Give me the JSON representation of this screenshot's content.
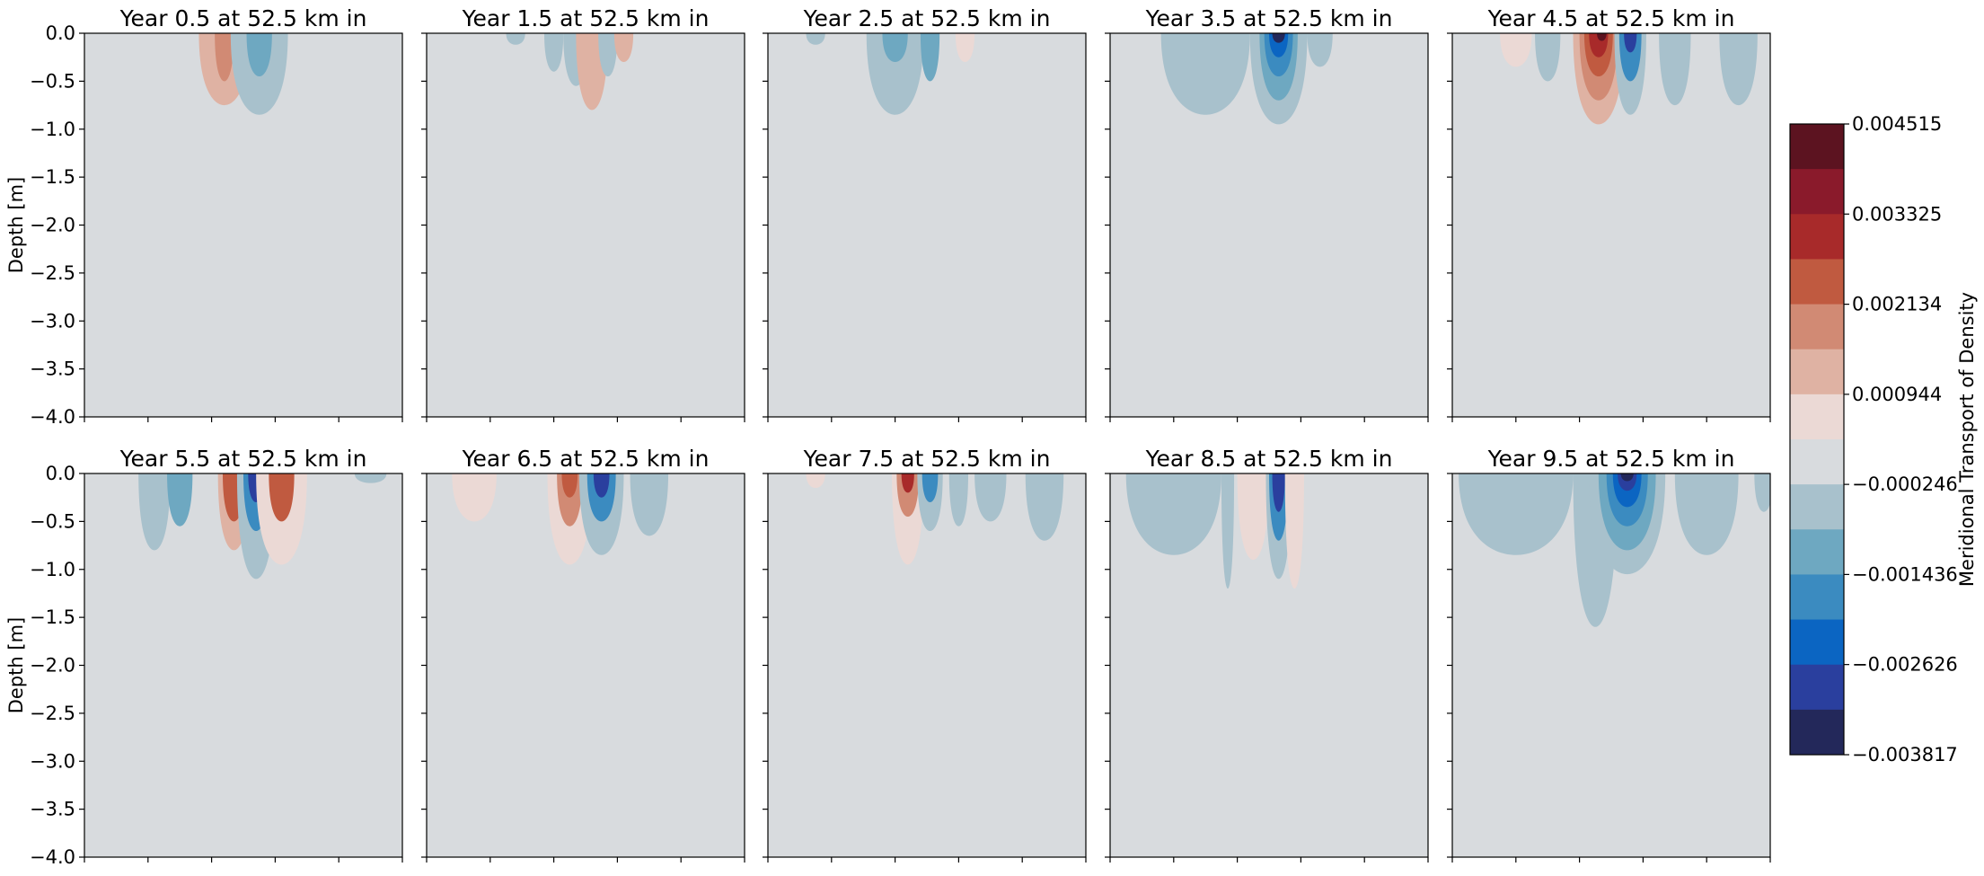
{
  "chart_data": {
    "type": "contour",
    "ylabel": "Depth [m]",
    "ylim": [
      -4.0,
      0.0
    ],
    "yticks": [
      "0.0",
      "−0.5",
      "−1.0",
      "−1.5",
      "−2.0",
      "−2.5",
      "−3.0",
      "−3.5",
      "−4.0"
    ],
    "yticks_values": [
      0.0,
      -0.5,
      -1.0,
      -1.5,
      -2.0,
      -2.5,
      -3.0,
      -3.5,
      -4.0
    ],
    "xtick_count": 6,
    "colorbar": {
      "label": "Meridional Transport of Density",
      "range": [
        -0.003817,
        0.004515
      ],
      "tick_labels": [
        "0.004515",
        "0.003325",
        "0.002134",
        "0.000944",
        "−0.000246",
        "−0.001436",
        "−2.626e-3",
        "−0.003817"
      ],
      "tick_display": [
        "0.004515",
        "0.003325",
        "0.002134",
        "0.000944",
        "−0.000246",
        "−0.001436",
        "−0.002626",
        "−0.003817"
      ],
      "tick_values": [
        0.004515,
        0.003325,
        0.002134,
        0.000944,
        -0.000246,
        -0.001436,
        -0.002626,
        -0.003817
      ],
      "levels_top_to_bottom": [
        "#5c1320",
        "#8a1a2b",
        "#a82a2a",
        "#c05a40",
        "#d18a74",
        "#dfb2a3",
        "#ebd9d5",
        "#d8dbde",
        "#a8c1cc",
        "#6ea8c1",
        "#3b8bc0",
        "#0b65c2",
        "#2a3f9e",
        "#23285a"
      ]
    },
    "panels": [
      {
        "title": "Year 0.5 at 52.5 km in",
        "blobs": [
          {
            "x": 0.44,
            "d": 0.75,
            "w": 0.08,
            "c": 5
          },
          {
            "x": 0.44,
            "d": 0.5,
            "w": 0.03,
            "c": 4
          },
          {
            "x": 0.55,
            "d": 0.85,
            "w": 0.09,
            "c": 8
          },
          {
            "x": 0.55,
            "d": 0.45,
            "w": 0.04,
            "c": 9
          }
        ]
      },
      {
        "title": "Year 1.5 at 52.5 km in",
        "blobs": [
          {
            "x": 0.28,
            "d": 0.12,
            "w": 0.03,
            "c": 8
          },
          {
            "x": 0.4,
            "d": 0.4,
            "w": 0.03,
            "c": 8
          },
          {
            "x": 0.47,
            "d": 0.55,
            "w": 0.04,
            "c": 8
          },
          {
            "x": 0.52,
            "d": 0.8,
            "w": 0.05,
            "c": 5
          },
          {
            "x": 0.57,
            "d": 0.45,
            "w": 0.03,
            "c": 8
          },
          {
            "x": 0.62,
            "d": 0.3,
            "w": 0.03,
            "c": 5
          }
        ]
      },
      {
        "title": "Year 2.5 at 52.5 km in",
        "blobs": [
          {
            "x": 0.15,
            "d": 0.12,
            "w": 0.03,
            "c": 8
          },
          {
            "x": 0.4,
            "d": 0.85,
            "w": 0.09,
            "c": 8
          },
          {
            "x": 0.4,
            "d": 0.3,
            "w": 0.04,
            "c": 9
          },
          {
            "x": 0.51,
            "d": 0.5,
            "w": 0.03,
            "c": 9
          },
          {
            "x": 0.62,
            "d": 0.3,
            "w": 0.03,
            "c": 6
          }
        ]
      },
      {
        "title": "Year 3.5 at 52.5 km in",
        "blobs": [
          {
            "x": 0.3,
            "d": 0.85,
            "w": 0.14,
            "c": 8
          },
          {
            "x": 0.53,
            "d": 0.95,
            "w": 0.09,
            "c": 8
          },
          {
            "x": 0.53,
            "d": 0.7,
            "w": 0.06,
            "c": 9
          },
          {
            "x": 0.53,
            "d": 0.45,
            "w": 0.045,
            "c": 10
          },
          {
            "x": 0.53,
            "d": 0.25,
            "w": 0.03,
            "c": 11
          },
          {
            "x": 0.53,
            "d": 0.1,
            "w": 0.02,
            "c": 13
          },
          {
            "x": 0.66,
            "d": 0.35,
            "w": 0.04,
            "c": 8
          }
        ]
      },
      {
        "title": "Year 4.5 at 52.5 km in",
        "blobs": [
          {
            "x": 0.2,
            "d": 0.35,
            "w": 0.05,
            "c": 6
          },
          {
            "x": 0.3,
            "d": 0.5,
            "w": 0.04,
            "c": 8
          },
          {
            "x": 0.46,
            "d": 0.95,
            "w": 0.08,
            "c": 5
          },
          {
            "x": 0.46,
            "d": 0.7,
            "w": 0.06,
            "c": 4
          },
          {
            "x": 0.46,
            "d": 0.45,
            "w": 0.045,
            "c": 3
          },
          {
            "x": 0.46,
            "d": 0.25,
            "w": 0.03,
            "c": 2
          },
          {
            "x": 0.47,
            "d": 0.08,
            "w": 0.015,
            "c": 0
          },
          {
            "x": 0.56,
            "d": 0.85,
            "w": 0.05,
            "c": 8
          },
          {
            "x": 0.56,
            "d": 0.5,
            "w": 0.035,
            "c": 10
          },
          {
            "x": 0.56,
            "d": 0.2,
            "w": 0.02,
            "c": 12
          },
          {
            "x": 0.7,
            "d": 0.75,
            "w": 0.05,
            "c": 8
          },
          {
            "x": 0.9,
            "d": 0.75,
            "w": 0.06,
            "c": 8
          }
        ]
      },
      {
        "title": "Year 5.5 at 52.5 km in",
        "blobs": [
          {
            "x": 0.22,
            "d": 0.8,
            "w": 0.05,
            "c": 8
          },
          {
            "x": 0.3,
            "d": 0.55,
            "w": 0.04,
            "c": 9
          },
          {
            "x": 0.47,
            "d": 0.8,
            "w": 0.05,
            "c": 5
          },
          {
            "x": 0.47,
            "d": 0.5,
            "w": 0.035,
            "c": 3
          },
          {
            "x": 0.54,
            "d": 1.1,
            "w": 0.06,
            "c": 8
          },
          {
            "x": 0.54,
            "d": 0.6,
            "w": 0.04,
            "c": 10
          },
          {
            "x": 0.54,
            "d": 0.3,
            "w": 0.025,
            "c": 12
          },
          {
            "x": 0.62,
            "d": 0.95,
            "w": 0.08,
            "c": 6
          },
          {
            "x": 0.62,
            "d": 0.5,
            "w": 0.04,
            "c": 3
          },
          {
            "x": 0.9,
            "d": 0.1,
            "w": 0.05,
            "c": 8
          }
        ]
      },
      {
        "title": "Year 6.5 at 52.5 km in",
        "blobs": [
          {
            "x": 0.15,
            "d": 0.5,
            "w": 0.07,
            "c": 6
          },
          {
            "x": 0.45,
            "d": 0.95,
            "w": 0.07,
            "c": 6
          },
          {
            "x": 0.45,
            "d": 0.55,
            "w": 0.04,
            "c": 4
          },
          {
            "x": 0.45,
            "d": 0.25,
            "w": 0.025,
            "c": 3
          },
          {
            "x": 0.55,
            "d": 0.85,
            "w": 0.07,
            "c": 8
          },
          {
            "x": 0.55,
            "d": 0.5,
            "w": 0.045,
            "c": 10
          },
          {
            "x": 0.55,
            "d": 0.25,
            "w": 0.025,
            "c": 12
          },
          {
            "x": 0.7,
            "d": 0.65,
            "w": 0.06,
            "c": 8
          }
        ]
      },
      {
        "title": "Year 7.5 at 52.5 km in",
        "blobs": [
          {
            "x": 0.15,
            "d": 0.15,
            "w": 0.03,
            "c": 6
          },
          {
            "x": 0.44,
            "d": 0.95,
            "w": 0.05,
            "c": 6
          },
          {
            "x": 0.44,
            "d": 0.45,
            "w": 0.035,
            "c": 4
          },
          {
            "x": 0.44,
            "d": 0.2,
            "w": 0.02,
            "c": 2
          },
          {
            "x": 0.51,
            "d": 0.6,
            "w": 0.04,
            "c": 8
          },
          {
            "x": 0.51,
            "d": 0.3,
            "w": 0.025,
            "c": 10
          },
          {
            "x": 0.6,
            "d": 0.55,
            "w": 0.03,
            "c": 8
          },
          {
            "x": 0.7,
            "d": 0.5,
            "w": 0.05,
            "c": 8
          },
          {
            "x": 0.87,
            "d": 0.7,
            "w": 0.06,
            "c": 8
          }
        ]
      },
      {
        "title": "Year 8.5 at 52.5 km in",
        "blobs": [
          {
            "x": 0.2,
            "d": 0.85,
            "w": 0.15,
            "c": 8
          },
          {
            "x": 0.45,
            "d": 0.9,
            "w": 0.05,
            "c": 6
          },
          {
            "x": 0.53,
            "d": 1.1,
            "w": 0.04,
            "c": 8
          },
          {
            "x": 0.53,
            "d": 0.7,
            "w": 0.03,
            "c": 10
          },
          {
            "x": 0.53,
            "d": 0.4,
            "w": 0.02,
            "c": 12
          },
          {
            "x": 0.58,
            "d": 1.2,
            "w": 0.03,
            "c": 6
          },
          {
            "x": 0.37,
            "d": 1.2,
            "w": 0.02,
            "c": 8
          }
        ]
      },
      {
        "title": "Year 9.5 at 52.5 km in",
        "blobs": [
          {
            "x": 0.2,
            "d": 0.85,
            "w": 0.18,
            "c": 8
          },
          {
            "x": 0.45,
            "d": 1.6,
            "w": 0.07,
            "c": 8
          },
          {
            "x": 0.55,
            "d": 1.05,
            "w": 0.12,
            "c": 8
          },
          {
            "x": 0.55,
            "d": 0.8,
            "w": 0.09,
            "c": 9
          },
          {
            "x": 0.55,
            "d": 0.55,
            "w": 0.065,
            "c": 10
          },
          {
            "x": 0.55,
            "d": 0.35,
            "w": 0.045,
            "c": 11
          },
          {
            "x": 0.55,
            "d": 0.18,
            "w": 0.03,
            "c": 12
          },
          {
            "x": 0.55,
            "d": 0.08,
            "w": 0.02,
            "c": 13
          },
          {
            "x": 0.8,
            "d": 0.85,
            "w": 0.1,
            "c": 8
          },
          {
            "x": 0.98,
            "d": 0.4,
            "w": 0.03,
            "c": 8
          }
        ]
      }
    ]
  }
}
